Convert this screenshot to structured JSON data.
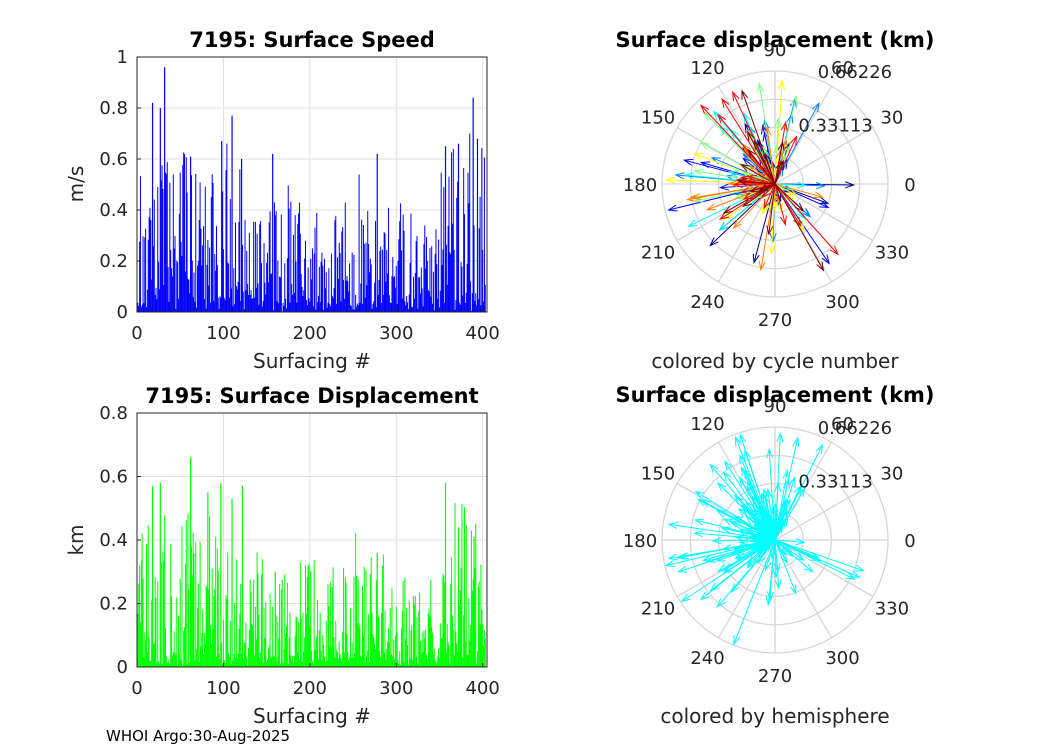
{
  "footer": "WHOI Argo:30-Aug-2025",
  "chart_data": [
    {
      "type": "bar",
      "title": "7195: Surface Speed",
      "xlabel": "Surfacing #",
      "ylabel": "m/s",
      "xlim": [
        0,
        405
      ],
      "ylim": [
        0,
        1
      ],
      "xticks": [
        "0",
        "100",
        "200",
        "300",
        "400"
      ],
      "yticks": [
        "0",
        "0.2",
        "0.4",
        "0.6",
        "0.8",
        "1"
      ],
      "color": "#0000ff",
      "peaks": [
        {
          "x": 18,
          "y": 0.82
        },
        {
          "x": 27,
          "y": 0.8
        },
        {
          "x": 32,
          "y": 0.96
        },
        {
          "x": 62,
          "y": 0.61
        },
        {
          "x": 98,
          "y": 0.67
        },
        {
          "x": 110,
          "y": 0.77
        },
        {
          "x": 121,
          "y": 0.6
        },
        {
          "x": 157,
          "y": 0.62
        },
        {
          "x": 278,
          "y": 0.62
        },
        {
          "x": 357,
          "y": 0.65
        },
        {
          "x": 372,
          "y": 0.66
        },
        {
          "x": 389,
          "y": 0.84
        },
        {
          "x": 394,
          "y": 0.68
        }
      ]
    },
    {
      "type": "polar-quiver",
      "title": "Surface displacement (km)",
      "caption": "colored by cycle number",
      "rticks": [
        "0.33113",
        "0.66226"
      ],
      "angle_labels": [
        "0",
        "30",
        "60",
        "90",
        "120",
        "150",
        "180",
        "210",
        "240",
        "270",
        "300",
        "330"
      ],
      "colormap": [
        "#00008f",
        "#0000ff",
        "#0080ff",
        "#00ffff",
        "#80ff80",
        "#ffff00",
        "#ff8000",
        "#ff0000",
        "#800000"
      ]
    },
    {
      "type": "bar",
      "title": "7195: Surface Displacement",
      "xlabel": "Surfacing #",
      "ylabel": "km",
      "xlim": [
        0,
        405
      ],
      "ylim": [
        0,
        0.8
      ],
      "xticks": [
        "0",
        "100",
        "200",
        "300",
        "400"
      ],
      "yticks": [
        "0",
        "0.2",
        "0.4",
        "0.6",
        "0.8"
      ],
      "color": "#00ff00",
      "peaks": [
        {
          "x": 18,
          "y": 0.57
        },
        {
          "x": 27,
          "y": 0.58
        },
        {
          "x": 62,
          "y": 0.66
        },
        {
          "x": 82,
          "y": 0.55
        },
        {
          "x": 97,
          "y": 0.58
        },
        {
          "x": 110,
          "y": 0.53
        },
        {
          "x": 122,
          "y": 0.57
        },
        {
          "x": 160,
          "y": 0.3
        },
        {
          "x": 278,
          "y": 0.36
        },
        {
          "x": 357,
          "y": 0.58
        },
        {
          "x": 372,
          "y": 0.44
        },
        {
          "x": 390,
          "y": 0.41
        }
      ]
    },
    {
      "type": "polar-quiver",
      "title": "Surface displacement (km)",
      "caption": "colored by hemisphere",
      "rticks": [
        "0.33113",
        "0.66226"
      ],
      "angle_labels": [
        "0",
        "30",
        "60",
        "90",
        "120",
        "150",
        "180",
        "210",
        "240",
        "270",
        "300",
        "330"
      ],
      "color": "#00ffff"
    }
  ]
}
